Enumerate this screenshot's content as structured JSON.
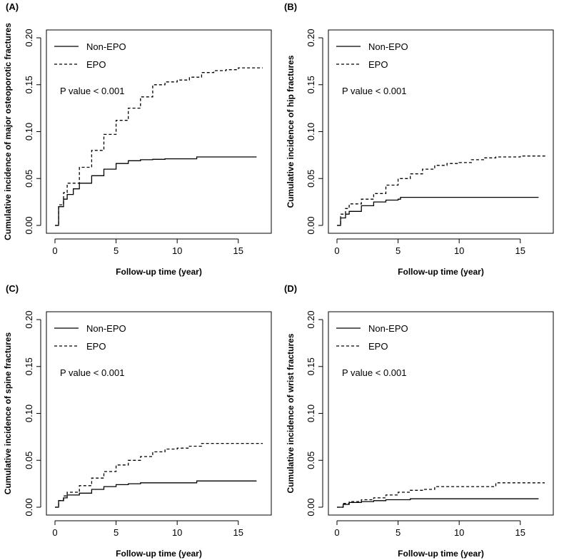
{
  "figure": {
    "colors": {
      "ink": "#000000",
      "background": "#ffffff"
    }
  },
  "chart_data": [
    {
      "panel": "(A)",
      "type": "line",
      "title": "",
      "xlabel": "Follow-up time (year)",
      "ylabel": "Cumulative incidence of major osteoporotic fractures",
      "xlim": [
        0,
        17
      ],
      "ylim": [
        0,
        0.2
      ],
      "xticks": [
        "0",
        "5",
        "10",
        "15"
      ],
      "yticks": [
        "0.00",
        "0.05",
        "0.10",
        "0.15",
        "0.20"
      ],
      "legend": {
        "placement": "top-left"
      },
      "annotation": "P value < 0.001",
      "series": [
        {
          "name": "Non-EPO",
          "dash": "solid",
          "x": [
            0,
            0.3,
            0.7,
            1,
            1.5,
            2,
            3,
            4,
            5,
            6,
            7,
            8,
            9,
            10,
            11.5,
            11.6,
            16.5
          ],
          "y": [
            0,
            0.02,
            0.028,
            0.033,
            0.039,
            0.045,
            0.053,
            0.06,
            0.066,
            0.069,
            0.07,
            0.0705,
            0.071,
            0.071,
            0.071,
            0.073,
            0.073
          ]
        },
        {
          "name": "EPO",
          "dash": "dashed",
          "x": [
            0,
            0.3,
            0.7,
            1,
            2,
            3,
            4,
            5,
            6,
            7,
            8,
            9,
            10,
            11,
            12,
            13,
            14,
            15,
            17
          ],
          "y": [
            0,
            0.022,
            0.035,
            0.045,
            0.062,
            0.08,
            0.097,
            0.112,
            0.125,
            0.137,
            0.15,
            0.153,
            0.155,
            0.158,
            0.163,
            0.165,
            0.166,
            0.168,
            0.168
          ]
        }
      ]
    },
    {
      "panel": "(B)",
      "type": "line",
      "title": "",
      "xlabel": "Follow-up time (year)",
      "ylabel": "Cumulative incidence of hip fractures",
      "xlim": [
        0,
        17
      ],
      "ylim": [
        0,
        0.2
      ],
      "xticks": [
        "0",
        "5",
        "10",
        "15"
      ],
      "yticks": [
        "0.00",
        "0.05",
        "0.10",
        "0.15",
        "0.20"
      ],
      "legend": {
        "placement": "top-left"
      },
      "annotation": "P value < 0.001",
      "series": [
        {
          "name": "Non-EPO",
          "dash": "solid",
          "x": [
            0,
            0.3,
            0.7,
            1,
            2,
            3,
            4,
            5,
            5.2,
            16.5
          ],
          "y": [
            0,
            0.008,
            0.012,
            0.015,
            0.021,
            0.025,
            0.027,
            0.028,
            0.03,
            0.03
          ]
        },
        {
          "name": "EPO",
          "dash": "dashed",
          "x": [
            0,
            0.3,
            0.7,
            1,
            2,
            3,
            4,
            5,
            6,
            7,
            8,
            9,
            10,
            11,
            12,
            13,
            15,
            17
          ],
          "y": [
            0,
            0.012,
            0.018,
            0.023,
            0.028,
            0.034,
            0.043,
            0.05,
            0.055,
            0.06,
            0.064,
            0.066,
            0.067,
            0.07,
            0.072,
            0.073,
            0.074,
            0.075
          ]
        }
      ]
    },
    {
      "panel": "(C)",
      "type": "line",
      "title": "",
      "xlabel": "Follow-up time (year)",
      "ylabel": "Cumulative incidence of spine fractures",
      "xlim": [
        0,
        17
      ],
      "ylim": [
        0,
        0.2
      ],
      "xticks": [
        "0",
        "5",
        "10",
        "15"
      ],
      "yticks": [
        "0.00",
        "0.05",
        "0.10",
        "0.15",
        "0.20"
      ],
      "legend": {
        "placement": "top-left"
      },
      "annotation": "P value < 0.001",
      "series": [
        {
          "name": "Non-EPO",
          "dash": "solid",
          "x": [
            0,
            0.3,
            0.7,
            1,
            2,
            3,
            4,
            5,
            6,
            7,
            8,
            10,
            11.5,
            11.6,
            16.5
          ],
          "y": [
            0,
            0.007,
            0.01,
            0.013,
            0.015,
            0.019,
            0.022,
            0.024,
            0.025,
            0.026,
            0.026,
            0.026,
            0.026,
            0.028,
            0.028
          ]
        },
        {
          "name": "EPO",
          "dash": "dashed",
          "x": [
            0,
            0.3,
            0.7,
            1,
            2,
            3,
            4,
            5,
            6,
            7,
            8,
            9,
            10,
            11,
            12,
            15,
            17
          ],
          "y": [
            0,
            0.007,
            0.012,
            0.016,
            0.023,
            0.031,
            0.038,
            0.045,
            0.05,
            0.054,
            0.059,
            0.062,
            0.063,
            0.065,
            0.068,
            0.068,
            0.068
          ]
        }
      ]
    },
    {
      "panel": "(D)",
      "type": "line",
      "title": "",
      "xlabel": "Follow-up time (year)",
      "ylabel": "Cumulative incidence of wrist fractures",
      "xlim": [
        0,
        17
      ],
      "ylim": [
        0,
        0.2
      ],
      "xticks": [
        "0",
        "5",
        "10",
        "15"
      ],
      "yticks": [
        "0.00",
        "0.05",
        "0.10",
        "0.15",
        "0.20"
      ],
      "legend": {
        "placement": "top-left"
      },
      "annotation": "P value < 0.001",
      "series": [
        {
          "name": "Non-EPO",
          "dash": "solid",
          "x": [
            0,
            0.5,
            1,
            2,
            3,
            4,
            5,
            6,
            8,
            10,
            16.5
          ],
          "y": [
            0,
            0.003,
            0.005,
            0.006,
            0.007,
            0.008,
            0.008,
            0.009,
            0.009,
            0.009,
            0.009
          ]
        },
        {
          "name": "EPO",
          "dash": "dashed",
          "x": [
            0,
            0.5,
            1,
            2,
            3,
            4,
            5,
            6,
            7,
            8,
            10,
            12,
            13,
            15,
            17
          ],
          "y": [
            0,
            0.004,
            0.006,
            0.008,
            0.01,
            0.013,
            0.016,
            0.018,
            0.019,
            0.022,
            0.022,
            0.022,
            0.026,
            0.026,
            0.026
          ]
        }
      ]
    }
  ]
}
